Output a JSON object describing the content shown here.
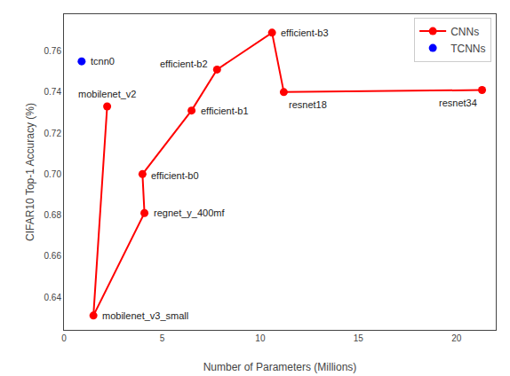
{
  "chart_data": {
    "type": "line",
    "xlabel": "Number of Parameters (Millions)",
    "ylabel": "CIFAR10 Top-1 Accuracy (%)",
    "series": [
      {
        "name": "CNNs",
        "type": "line",
        "color": "#FF0000",
        "marker": "circle",
        "x": [
          2.2,
          1.5,
          4.1,
          4.0,
          6.5,
          7.8,
          10.6,
          11.2,
          21.3
        ],
        "values": [
          0.733,
          0.631,
          0.681,
          0.7,
          0.731,
          0.751,
          0.769,
          0.74,
          0.741
        ]
      },
      {
        "name": "TCNNs",
        "type": "scatter",
        "color": "#0000FF",
        "marker": "circle",
        "x": [
          0.9
        ],
        "values": [
          0.755
        ]
      }
    ],
    "annotations": [
      {
        "text": "mobilenet_v2",
        "x": 2.2,
        "y": 0.733
      },
      {
        "text": "mobilenet_v3_small",
        "x": 1.5,
        "y": 0.631
      },
      {
        "text": "efficient-b0",
        "x": 4.0,
        "y": 0.7
      },
      {
        "text": "regnet_y_400mf",
        "x": 4.1,
        "y": 0.681
      },
      {
        "text": "efficient-b1",
        "x": 6.5,
        "y": 0.731
      },
      {
        "text": "efficient-b2",
        "x": 7.8,
        "y": 0.751
      },
      {
        "text": "efficient-b3",
        "x": 10.6,
        "y": 0.769
      },
      {
        "text": "resnet18",
        "x": 11.2,
        "y": 0.74
      },
      {
        "text": "resnet34",
        "x": 21.3,
        "y": 0.741
      },
      {
        "text": "tcnn0",
        "x": 0.9,
        "y": 0.755
      }
    ],
    "xlim": [
      0,
      22
    ],
    "ylim": [
      0.624,
      0.778
    ],
    "xticks": [
      0,
      5,
      10,
      15,
      20
    ],
    "yticks": [
      0.64,
      0.66,
      0.68,
      {
        "value": 0.7,
        "label": "0.70"
      },
      0.72,
      0.74,
      0.76
    ],
    "grid": false,
    "legend": "upper right"
  }
}
